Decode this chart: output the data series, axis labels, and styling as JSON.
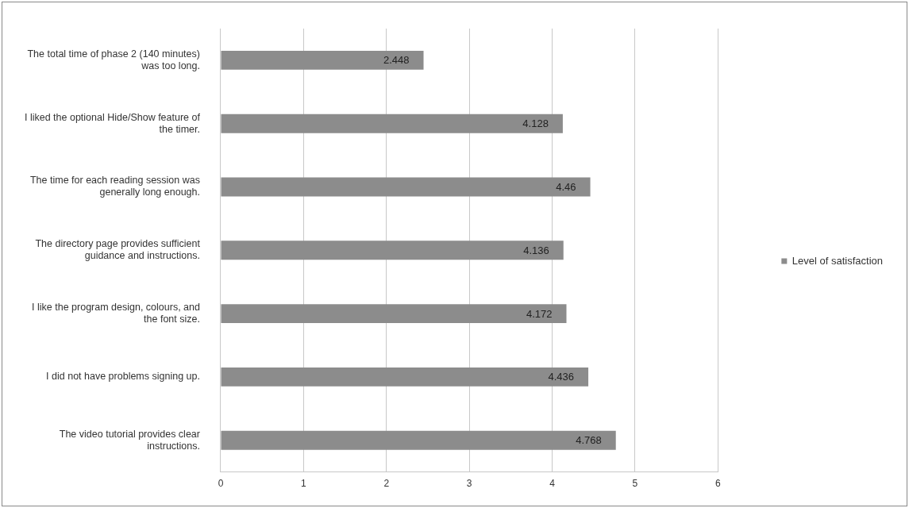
{
  "chart_data": {
    "type": "bar",
    "orientation": "horizontal",
    "categories": [
      "The total time of phase 2 (140 minutes) was too long.",
      "I liked the optional Hide/Show feature of the timer.",
      "The time for each reading session was generally long enough.",
      "The directory page provides sufficient guidance and instructions.",
      "I like the program design, colours, and the font size.",
      "I did not have problems signing up.",
      "The video tutorial provides clear instructions."
    ],
    "series": [
      {
        "name": "Level of satisfaction",
        "color": "#8c8c8c",
        "values": [
          2.448,
          4.128,
          4.46,
          4.136,
          4.172,
          4.436,
          4.768
        ]
      }
    ],
    "xlim": [
      0,
      6
    ],
    "xticks": [
      0,
      1,
      2,
      3,
      4,
      5,
      6
    ],
    "grid": "x",
    "legend": "right",
    "data_labels": true
  }
}
